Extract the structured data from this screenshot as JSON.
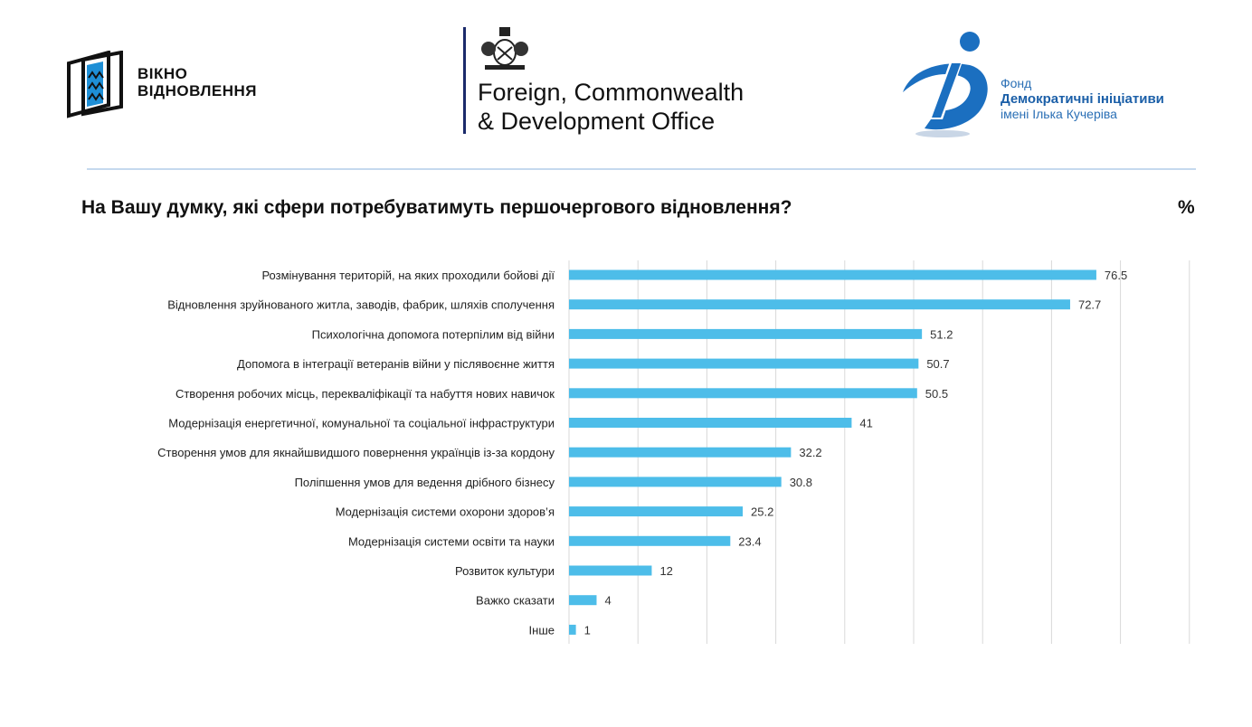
{
  "logos": {
    "vikno": {
      "line1": "ВІКНО",
      "line2": "ВІДНОВЛЕННЯ"
    },
    "fcdo": {
      "line1": "Foreign, Commonwealth",
      "line2": "& Development Office"
    },
    "dif": {
      "line1": "Фонд",
      "line2": "Демократичні ініціативи",
      "line3": "імені Ілька Кучеріва"
    }
  },
  "colors": {
    "bar": "#4dbde9",
    "grid": "#d9d9d9",
    "accent": "#1b5fa8"
  },
  "chart_data": {
    "type": "bar",
    "orientation": "horizontal",
    "title": "На Вашу думку, які сфери потребуватимуть першочергового відновлення?",
    "unit_label": "%",
    "categories": [
      "Розмінування територій, на яких проходили бойові дії",
      "Відновлення зруйнованого житла, заводів, фабрик, шляхів сполучення",
      "Психологічна допомога потерпілим від війни",
      "Допомога в інтеграції ветеранів війни у післявоєнне життя",
      "Створення робочих місць, перекваліфікації та набуття нових навичок",
      "Модернізація енергетичної, комунальної та соціальної інфраструктури",
      "Створення умов для якнайшвидшого повернення українців із-за кордону",
      "Поліпшення умов для ведення дрібного бізнесу",
      "Модернізація системи охорони здоров’я",
      "Модернізація системи освіти та науки",
      "Розвиток культури",
      "Важко сказати",
      "Інше"
    ],
    "values": [
      76.5,
      72.7,
      51.2,
      50.7,
      50.5,
      41,
      32.2,
      30.8,
      25.2,
      23.4,
      12,
      4,
      1
    ],
    "value_labels": [
      "76.5",
      "72.7",
      "51.2",
      "50.7",
      "50.5",
      "41",
      "32.2",
      "30.8",
      "25.2",
      "23.4",
      "12",
      "4",
      "1"
    ],
    "xlim": [
      0,
      90
    ],
    "grid_step": 10,
    "grid": true,
    "legend": "none"
  }
}
